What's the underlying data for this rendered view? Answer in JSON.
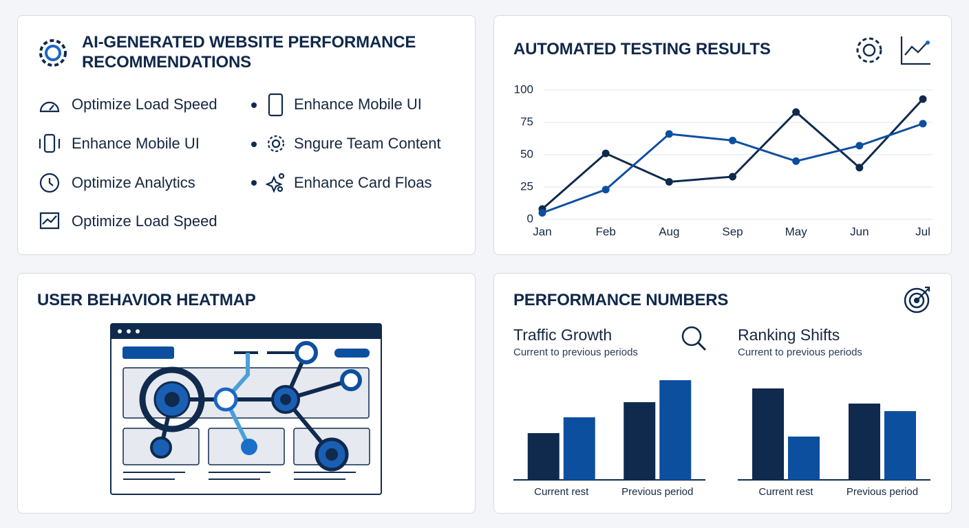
{
  "recommendations": {
    "title": "AI-GENERATED WEBSITE PERFORMANCE RECOMMENDATIONS",
    "items": [
      "Optimize Load Speed",
      "Enhance Mobile UI",
      "Optimize Analytics",
      "Optimize Load Speed",
      "Enhance Mobile UI",
      "Sngure Team Content",
      "Enhance Card Floas"
    ]
  },
  "heatmap": {
    "title": "USER BEHAVIOR HEATMAP"
  },
  "performance": {
    "title": "PERFORMANCE NUMBERS"
  },
  "chart_data": [
    {
      "type": "line",
      "title": "AUTOMATED TESTING RESULTS",
      "categories": [
        "Jan",
        "Feb",
        "Aug",
        "Sep",
        "May",
        "Jun",
        "Jul"
      ],
      "series": [
        {
          "color": "#0f2a4d",
          "values": [
            8,
            51,
            29,
            33,
            83,
            40,
            93
          ]
        },
        {
          "color": "#0d4f9f",
          "values": [
            5,
            23,
            66,
            61,
            45,
            57,
            74
          ]
        }
      ],
      "ylim": [
        0,
        100
      ],
      "yticks": [
        0,
        25,
        50,
        75,
        100
      ],
      "grid": true
    },
    {
      "type": "bar",
      "title": "Traffic Growth",
      "subtitle": "Current to previous periods",
      "categories": [
        "Current rest",
        "Previous period"
      ],
      "series": [
        {
          "color": "#0f2a4d",
          "values": [
            68,
            113
          ]
        },
        {
          "color": "#0d4f9f",
          "values": [
            91,
            145
          ]
        }
      ],
      "ylim": [
        0,
        160
      ]
    },
    {
      "type": "bar",
      "title": "Ranking Shifts",
      "subtitle": "Current to previous periods",
      "categories": [
        "Current rest",
        "Previous period"
      ],
      "series": [
        {
          "color": "#0f2a4d",
          "values": [
            133,
            111
          ]
        },
        {
          "color": "#0d4f9f",
          "values": [
            63,
            100
          ]
        }
      ],
      "ylim": [
        0,
        160
      ]
    }
  ]
}
